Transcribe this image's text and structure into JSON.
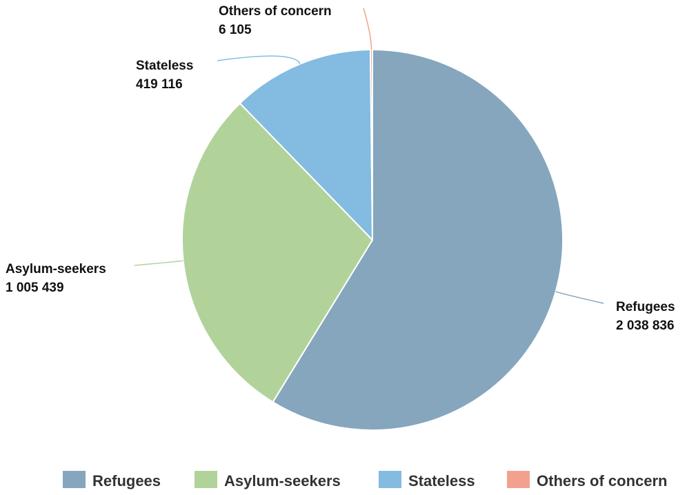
{
  "chart_data": {
    "type": "pie",
    "slices": [
      {
        "name": "Refugees",
        "label": "Refugees",
        "value_text": "2 038 836",
        "value": 2038836,
        "color": "#85A6BD"
      },
      {
        "name": "Asylum-seekers",
        "label": "Asylum-seekers",
        "value_text": "1 005 439",
        "value": 1005439,
        "color": "#B1D39A"
      },
      {
        "name": "Stateless",
        "label": "Stateless",
        "value_text": "419 116",
        "value": 419116,
        "color": "#83BBE1"
      },
      {
        "name": "Others of concern",
        "label": "Others of concern",
        "value_text": "6 105",
        "value": 6105,
        "color": "#F4A08E"
      }
    ],
    "legend": {
      "placement": "bottom",
      "items": [
        "Refugees",
        "Asylum-seekers",
        "Stateless",
        "Others of concern"
      ]
    }
  }
}
